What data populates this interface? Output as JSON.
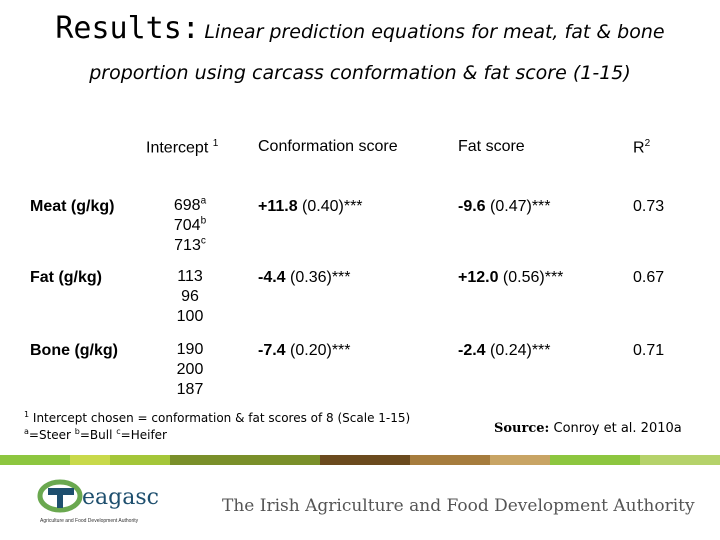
{
  "header": {
    "title_lead": "Results:",
    "title_rest": "Linear prediction equations for meat, fat & bone",
    "subtitle": "proportion using carcass conformation & fat score (1-15)"
  },
  "table": {
    "headers": {
      "intercept": "Intercept",
      "intercept_sup": "1",
      "conformation": "Conformation score",
      "fat": "Fat score",
      "r2": "R",
      "r2_sup": "2"
    },
    "rows": [
      {
        "label": "Meat (g/kg)",
        "intercepts": [
          {
            "value": "698",
            "sup": "a"
          },
          {
            "value": "704",
            "sup": "b"
          },
          {
            "value": "713",
            "sup": "c"
          }
        ],
        "conf_coef": "+11.8",
        "conf_rest": " (0.40)***",
        "fat_coef": "-9.6",
        "fat_rest": " (0.47)***",
        "r2": "0.73"
      },
      {
        "label": "Fat (g/kg)",
        "intercepts": [
          {
            "value": "113",
            "sup": ""
          },
          {
            "value": "96",
            "sup": ""
          },
          {
            "value": "100",
            "sup": ""
          }
        ],
        "conf_coef": "-4.4",
        "conf_rest": " (0.36)***",
        "fat_coef": "+12.0",
        "fat_rest": " (0.56)***",
        "r2": "0.67"
      },
      {
        "label": "Bone (g/kg)",
        "intercepts": [
          {
            "value": "190",
            "sup": ""
          },
          {
            "value": "200",
            "sup": ""
          },
          {
            "value": "187",
            "sup": ""
          }
        ],
        "conf_coef": "-7.4",
        "conf_rest": " (0.20)***",
        "fat_coef": "-2.4",
        "fat_rest": " (0.24)***",
        "r2": "0.71"
      }
    ]
  },
  "footnotes": {
    "line1_sup": "1",
    "line1": " Intercept chosen = conformation & fat scores of 8 (Scale 1-15)",
    "steer_sup": "a",
    "steer": "=Steer ",
    "bull_sup": "b",
    "bull": "=Bull ",
    "heifer_sup": "c",
    "heifer": "=Heifer"
  },
  "source": {
    "label": "Source:",
    "text": " Conroy et al. 2010a"
  },
  "footer": {
    "logo_text": "eagasc",
    "logo_tagline": "Agriculture and Food Development Authority",
    "authority": "The Irish Agriculture and Food Development Authority",
    "band_colors": [
      "#8dc63f",
      "#c8d94a",
      "#a4c639",
      "#7a8f2a",
      "#6b4a1e",
      "#a67c3d",
      "#c8a464",
      "#8dc63f",
      "#b5d26a"
    ],
    "logo_green": "#6aa84f",
    "logo_dark": "#1e4f6e"
  }
}
